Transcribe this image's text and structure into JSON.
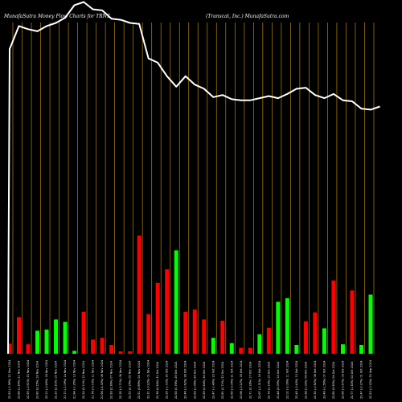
{
  "chart_data": {
    "type": "bar",
    "title_left": "MunafaSutra  Money Flow  Charts for TRNS",
    "title_right": "(Transcat,  Inc.) MunafaSutra.com",
    "colors": {
      "background": "#000000",
      "up": "#00ff00",
      "down": "#ff0000",
      "line": "#ffffff",
      "grid": "#b8860b"
    },
    "price_ylim": [
      0,
      100
    ],
    "price": [
      85,
      96,
      94.5,
      93.5,
      96,
      97.5,
      100,
      106,
      107.5,
      104,
      103.5,
      99.5,
      99,
      97.5,
      97,
      80.5,
      78.5,
      72,
      67,
      72,
      68,
      66,
      62,
      63,
      61,
      60.5,
      60.5,
      61.5,
      62.5,
      61.5,
      63.5,
      66,
      66.5,
      63,
      61.5,
      63.5,
      60.5,
      60,
      56.5,
      56,
      57.5
    ],
    "volume_ylim": [
      0,
      100
    ],
    "bars": [
      {
        "label": "22.53 (-1.58%) 20 Dec 2024",
        "value": 8.5,
        "dir": "down"
      },
      {
        "label": "22.89 (1.35%) 21 Nov 2024",
        "value": 31,
        "dir": "down"
      },
      {
        "label": "22.59 (-0.91%) 20 Nov 2024",
        "value": 8,
        "dir": "down"
      },
      {
        "label": "22.80 (3.15%) 19 Nov 2024",
        "value": 19.5,
        "dir": "up"
      },
      {
        "label": "22.10 (-0.45%) 18 Nov 2024",
        "value": 20.5,
        "dir": "up"
      },
      {
        "label": "22.20 (2.31%) 15 Nov 2024",
        "value": 29,
        "dir": "up"
      },
      {
        "label": "21.70 (-1.09%) 14 Nov 2024",
        "value": 27,
        "dir": "up"
      },
      {
        "label": "21.94 (-1.35%) 13 Nov 2024",
        "value": 2.5,
        "dir": "up"
      },
      {
        "label": "22.24 (2.11%) 12 Nov 2024",
        "value": 35.5,
        "dir": "down"
      },
      {
        "label": "21.78 (-0.73%) 11 Nov 2024",
        "value": 12,
        "dir": "down"
      },
      {
        "label": "21.94 (-4.30%) 08 Nov 2024",
        "value": 13.5,
        "dir": "down"
      },
      {
        "label": "22.93 (2.39%) 07 Nov 2024",
        "value": 7.5,
        "dir": "down"
      },
      {
        "label": "22.39 (-0.71%) 06 Nov 2024",
        "value": 2,
        "dir": "down"
      },
      {
        "label": "22.55 (0.16%) 05 Nov 2024",
        "value": 2,
        "dir": "down"
      },
      {
        "label": "22.51 (0.89%) 04 Nov 2024",
        "value": 100,
        "dir": "down"
      },
      {
        "label": "22.31 (-0.22%) 01 Nov 2024",
        "value": 33.5,
        "dir": "down"
      },
      {
        "label": "22.36 (0.54%) 31 Oct 2024",
        "value": 60,
        "dir": "down"
      },
      {
        "label": "22.24 (-1.72%) 30 Oct 2024",
        "value": 71.5,
        "dir": "down"
      },
      {
        "label": "22.63 (0.76%) 29 Oct 2024",
        "value": 87.5,
        "dir": "up"
      },
      {
        "label": "22.46 (-1.62%) 28 Oct 2024",
        "value": 35.5,
        "dir": "down"
      },
      {
        "label": "22.83 (1.06%) 25 Oct 2024",
        "value": 37.5,
        "dir": "down"
      },
      {
        "label": "22.59 (0.54%) 24 Oct 2024",
        "value": 29,
        "dir": "down"
      },
      {
        "label": "22.47 (-1.49%) 23 Oct 2024",
        "value": 13.5,
        "dir": "up"
      },
      {
        "label": "22.81 (0.71%) 22 Oct 2024",
        "value": 28,
        "dir": "down"
      },
      {
        "label": "22.65 (-0.04%) 21 Oct 2024",
        "value": 9,
        "dir": "up"
      },
      {
        "label": "22.66 (-0.22%) 18 Oct 2024",
        "value": 5,
        "dir": "down"
      },
      {
        "label": "22.71 (0.18%) 17 Oct 2024",
        "value": 5,
        "dir": "down"
      },
      {
        "label": "22.67 (-0.31%) 16 Oct 2024",
        "value": 16.5,
        "dir": "up"
      },
      {
        "label": "22.74 (1.15%) 15 Oct 2024",
        "value": 22,
        "dir": "down"
      },
      {
        "label": "22.48 (2.09%) 14 Oct 2024",
        "value": 44,
        "dir": "up"
      },
      {
        "label": "22.02 (-2.09%) 11 Oct 2024",
        "value": 47,
        "dir": "up"
      },
      {
        "label": "22.49 (-0.40%) 10 Oct 2024",
        "value": 7.5,
        "dir": "up"
      },
      {
        "label": "22.58 (1.02%) 09 Oct 2024",
        "value": 27.5,
        "dir": "down"
      },
      {
        "label": "22.35 (-0.62%) 08 Oct 2024",
        "value": 35,
        "dir": "down"
      },
      {
        "label": "22.49 (-1.56%) 07 Oct 2024",
        "value": 21.5,
        "dir": "up"
      },
      {
        "label": "22.85 (0.92%) 04 Oct 2024",
        "value": 62,
        "dir": "down"
      },
      {
        "label": "22.64 (-0.57%) 03 Oct 2024",
        "value": 8,
        "dir": "up"
      },
      {
        "label": "22.77 (1.32%) 02 Oct 2024",
        "value": 53.5,
        "dir": "down"
      },
      {
        "label": "22.47 (-0.27%) 01 Oct 2024",
        "value": 7.5,
        "dir": "up"
      },
      {
        "label": "22.53 (-0.22%) 30 Sep 2024",
        "value": 50,
        "dir": "up"
      }
    ]
  }
}
